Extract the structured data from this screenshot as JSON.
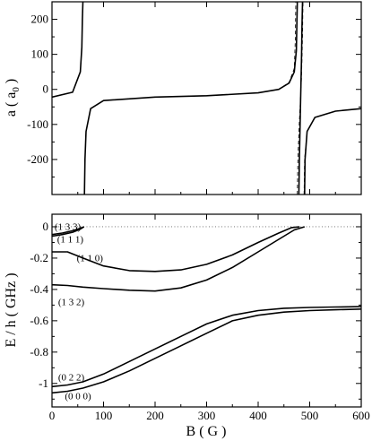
{
  "chart_data": [
    {
      "type": "line",
      "ylabel": "a ( a",
      "ylabel_sub": "0",
      "ylabel_close": " )",
      "xlim": [
        0,
        600
      ],
      "ylim": [
        -300,
        250
      ],
      "yticks": [
        200,
        100,
        0,
        -100,
        -200
      ],
      "yticklabels": [
        "200",
        "100",
        "0",
        "-100",
        "-200"
      ],
      "resonances_G": [
        62,
        478,
        488
      ],
      "series": [
        {
          "style": "solid",
          "x": [
            0,
            40,
            55,
            58,
            59,
            60
          ],
          "y": [
            -22,
            -8,
            50,
            120,
            200,
            250
          ]
        },
        {
          "style": "solid",
          "x": [
            63,
            64,
            66,
            75,
            100,
            200,
            300,
            400,
            440,
            460,
            470,
            474,
            476
          ],
          "y": [
            -300,
            -200,
            -120,
            -55,
            -32,
            -22,
            -18,
            -10,
            0,
            18,
            50,
            110,
            250
          ]
        },
        {
          "style": "solid",
          "x": [
            479,
            480,
            482,
            484,
            485,
            486
          ],
          "y": [
            -300,
            -200,
            -60,
            80,
            180,
            250
          ]
        },
        {
          "style": "solid",
          "x": [
            490,
            491,
            495,
            510,
            550,
            600
          ],
          "y": [
            -300,
            -200,
            -120,
            -80,
            -62,
            -55
          ]
        },
        {
          "style": "dashed",
          "x": [
            0,
            40,
            55,
            58,
            59,
            60
          ],
          "y": [
            -22,
            -8,
            50,
            120,
            200,
            250
          ]
        },
        {
          "style": "dashed",
          "x": [
            63,
            64,
            66,
            75,
            100,
            200,
            300,
            400,
            440,
            460,
            470,
            472,
            473
          ],
          "y": [
            -300,
            -200,
            -120,
            -55,
            -32,
            -22,
            -18,
            -10,
            0,
            20,
            60,
            140,
            250
          ]
        },
        {
          "style": "dashed",
          "x": [
            476,
            477,
            480,
            484,
            486,
            487
          ],
          "y": [
            -300,
            -200,
            -90,
            30,
            150,
            250
          ]
        },
        {
          "style": "dashed",
          "x": [
            489,
            490,
            495,
            510,
            550,
            600
          ],
          "y": [
            -300,
            -200,
            -120,
            -80,
            -62,
            -55
          ]
        }
      ]
    },
    {
      "type": "line",
      "xlabel": "B ( G )",
      "ylabel": "E / h ( GHz )",
      "xlim": [
        0,
        600
      ],
      "ylim": [
        -1.15,
        0.08
      ],
      "xticks": [
        0,
        100,
        200,
        300,
        400,
        500,
        600
      ],
      "xticklabels": [
        "0",
        "100",
        "200",
        "300",
        "400",
        "500",
        "600"
      ],
      "yticks": [
        0,
        -0.2,
        -0.4,
        -0.6,
        -0.8,
        -1
      ],
      "yticklabels": [
        "0",
        "-0.2",
        "-0.4",
        "-0.6",
        "-0.8",
        "-1"
      ],
      "zero_line": true,
      "labels": [
        "(1 3 3)",
        "(1 1 1)",
        "(1 1 0)",
        "(1 3 2)",
        "(0 2 2)",
        "(0 0 0)"
      ],
      "series": [
        {
          "x": [
            0,
            20,
            40,
            55,
            62
          ],
          "y": [
            -0.05,
            -0.04,
            -0.025,
            -0.01,
            0.0
          ]
        },
        {
          "x": [
            0,
            20,
            40,
            55,
            62
          ],
          "y": [
            -0.06,
            -0.05,
            -0.035,
            -0.015,
            0.0
          ]
        },
        {
          "x": [
            0,
            30,
            60,
            100,
            150,
            200,
            250,
            300,
            350,
            400,
            440,
            465,
            480
          ],
          "y": [
            -0.16,
            -0.16,
            -0.2,
            -0.25,
            -0.28,
            -0.285,
            -0.275,
            -0.24,
            -0.18,
            -0.1,
            -0.04,
            -0.005,
            0.0
          ]
        },
        {
          "x": [
            0,
            30,
            60,
            100,
            150,
            200,
            250,
            300,
            350,
            400,
            440,
            470,
            490
          ],
          "y": [
            -0.37,
            -0.375,
            -0.385,
            -0.395,
            -0.405,
            -0.41,
            -0.39,
            -0.34,
            -0.26,
            -0.16,
            -0.08,
            -0.02,
            0.0
          ]
        },
        {
          "x": [
            0,
            30,
            60,
            100,
            150,
            200,
            250,
            300,
            350,
            400,
            450,
            500,
            550,
            600
          ],
          "y": [
            -1.02,
            -1.01,
            -0.99,
            -0.94,
            -0.86,
            -0.78,
            -0.7,
            -0.62,
            -0.565,
            -0.535,
            -0.52,
            -0.515,
            -0.512,
            -0.51
          ]
        },
        {
          "x": [
            0,
            30,
            60,
            100,
            150,
            200,
            250,
            300,
            350,
            400,
            450,
            500,
            550,
            600
          ],
          "y": [
            -1.06,
            -1.05,
            -1.03,
            -0.99,
            -0.92,
            -0.84,
            -0.76,
            -0.68,
            -0.6,
            -0.565,
            -0.545,
            -0.535,
            -0.53,
            -0.525
          ]
        }
      ]
    }
  ]
}
